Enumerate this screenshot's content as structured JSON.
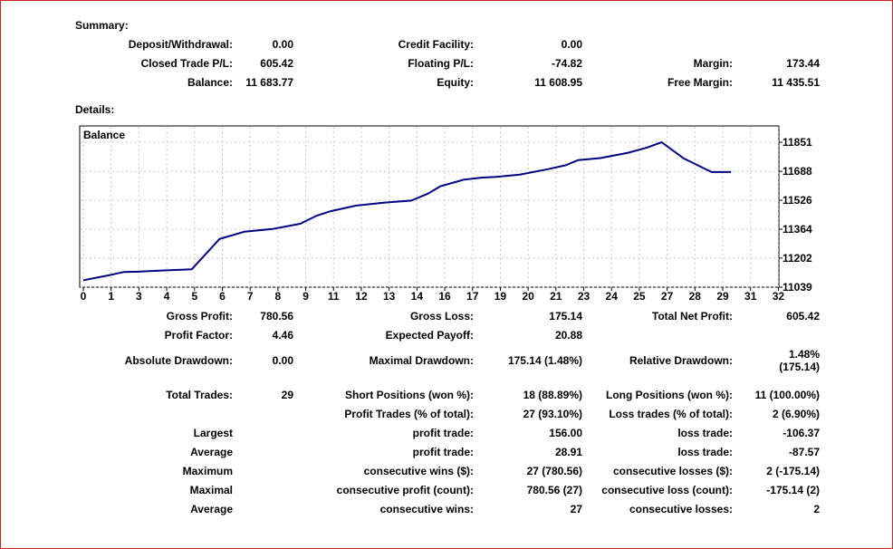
{
  "summary": {
    "heading": "Summary:",
    "deposit_withdrawal": {
      "label": "Deposit/Withdrawal:",
      "value": "0.00"
    },
    "credit_facility": {
      "label": "Credit Facility:",
      "value": "0.00"
    },
    "closed_trade_pl": {
      "label": "Closed Trade P/L:",
      "value": "605.42"
    },
    "floating_pl": {
      "label": "Floating P/L:",
      "value": "-74.82"
    },
    "margin": {
      "label": "Margin:",
      "value": "173.44"
    },
    "balance": {
      "label": "Balance:",
      "value": "11 683.77"
    },
    "equity": {
      "label": "Equity:",
      "value": "11 608.95"
    },
    "free_margin": {
      "label": "Free Margin:",
      "value": "11 435.51"
    }
  },
  "details": {
    "heading": "Details:",
    "gross_profit": {
      "label": "Gross Profit:",
      "value": "780.56"
    },
    "gross_loss": {
      "label": "Gross Loss:",
      "value": "175.14"
    },
    "total_net_profit": {
      "label": "Total Net Profit:",
      "value": "605.42"
    },
    "profit_factor": {
      "label": "Profit Factor:",
      "value": "4.46"
    },
    "expected_payoff": {
      "label": "Expected Payoff:",
      "value": "20.88"
    },
    "absolute_drawdown": {
      "label": "Absolute Drawdown:",
      "value": "0.00"
    },
    "maximal_drawdown": {
      "label": "Maximal Drawdown:",
      "value": "175.14 (1.48%)"
    },
    "relative_drawdown": {
      "label": "Relative Drawdown:",
      "value_line1": "1.48%",
      "value_line2": "(175.14)"
    },
    "total_trades": {
      "label": "Total Trades:",
      "value": "29"
    },
    "short_positions": {
      "label": "Short Positions (won %):",
      "value": "18 (88.89%)"
    },
    "long_positions": {
      "label": "Long Positions (won %):",
      "value": "11 (100.00%)"
    },
    "profit_trades": {
      "label": "Profit Trades (% of total):",
      "value": "27 (93.10%)"
    },
    "loss_trades": {
      "label": "Loss trades (% of total):",
      "value": "2 (6.90%)"
    },
    "largest": {
      "label": "Largest",
      "profit_label": "profit trade:",
      "profit_value": "156.00",
      "loss_label": "loss trade:",
      "loss_value": "-106.37"
    },
    "average": {
      "label": "Average",
      "profit_label": "profit trade:",
      "profit_value": "28.91",
      "loss_label": "loss trade:",
      "loss_value": "-87.57"
    },
    "maximum": {
      "label": "Maximum",
      "wins_label": "consecutive wins ($):",
      "wins_value": "27 (780.56)",
      "losses_label": "consecutive losses ($):",
      "losses_value": "2 (-175.14)"
    },
    "maximal": {
      "label": "Maximal",
      "profit_label": "consecutive profit (count):",
      "profit_value": "780.56 (27)",
      "loss_label": "consecutive loss (count):",
      "loss_value": "-175.14 (2)"
    },
    "average_consec": {
      "label": "Average",
      "wins_label": "consecutive wins:",
      "wins_value": "27",
      "losses_label": "consecutive losses:",
      "losses_value": "2"
    }
  },
  "chart_data": {
    "type": "line",
    "legend": "Balance",
    "line_color": "#000080",
    "grid": true,
    "x_ticks": [
      "0",
      "1",
      "3",
      "4",
      "5",
      "6",
      "7",
      "8",
      "9",
      "11",
      "12",
      "13",
      "14",
      "16",
      "17",
      "19",
      "20",
      "21",
      "23",
      "24",
      "25",
      "27",
      "28",
      "29",
      "31",
      "32"
    ],
    "y_ticks": [
      "11851",
      "11688",
      "11526",
      "11364",
      "11202",
      "11039"
    ],
    "ylim": [
      11039,
      11851
    ],
    "x": [
      0,
      0.9,
      1.9,
      2.9,
      3.9,
      4.9,
      5.9,
      6.8,
      7.8,
      8.8,
      9.8,
      10.8,
      11.8,
      12.8,
      13.8,
      14.8,
      15.7,
      16.7,
      17.7,
      18.7,
      19.7,
      20.7,
      21.7,
      22.6,
      23.6,
      24.6,
      25.6,
      26.6,
      27.6,
      28.6,
      29.6
    ],
    "y": [
      11078,
      11105,
      11124,
      11126,
      11133,
      11139,
      11309,
      11350,
      11365,
      11394,
      11440,
      11465,
      11496,
      11512,
      11524,
      11563,
      11605,
      11642,
      11653,
      11657,
      11670,
      11700,
      11722,
      11751,
      11762,
      11792,
      11822,
      11851,
      11760,
      11684,
      11684
    ]
  }
}
